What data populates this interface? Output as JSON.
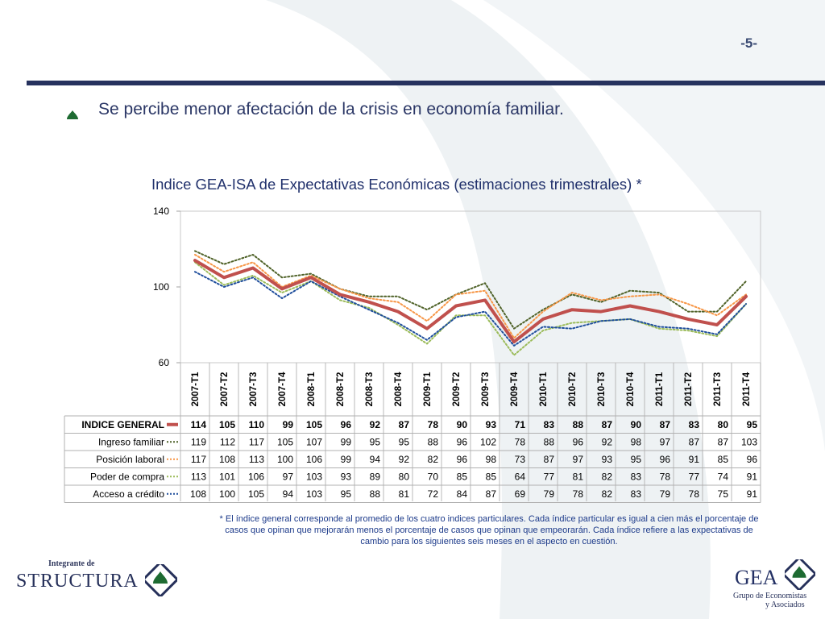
{
  "page_number": "-5-",
  "headline": "Se percibe menor afectación de la crisis en economía familiar.",
  "chart_title": "Indice GEA-ISA de Expectativas Económicas (estimaciones trimestrales) *",
  "footnote": "* El índice general corresponde al promedio de los cuatro indices particulares. Cada índice particular es igual a cien más el porcentaje de casos que opinan que mejorarán menos el porcentaje de casos que opinan que empeorarán. Cada índice refiere a las expectativas de cambio para los siguientes seis meses en el aspecto en cuestión.",
  "logos": {
    "structura_small": "Integrante de",
    "structura_big": "STRUCTURA",
    "gea_big": "GEA",
    "gea_line1": "Grupo de Economistas",
    "gea_line2": "y Asociados"
  },
  "colors": {
    "general": "#c0504d",
    "ingreso": "#4f6228",
    "posicion": "#f79646",
    "poder": "#9bbb59",
    "acceso": "#1f4e9c",
    "bullet": "#1e6b32",
    "rule": "#26325e"
  },
  "chart_data": {
    "type": "line",
    "title": "Indice GEA-ISA de Expectativas Económicas (estimaciones trimestrales) *",
    "categories": [
      "2007-T1",
      "2007-T2",
      "2007-T3",
      "2007-T4",
      "2008-T1",
      "2008-T2",
      "2008-T3",
      "2008-T4",
      "2009-T1",
      "2009-T2",
      "2009-T3",
      "2009-T4",
      "2010-T1",
      "2010-T2",
      "2010-T3",
      "2010-T4",
      "2011-T1",
      "2011-T2",
      "2011-T3",
      "2011-T4"
    ],
    "ylim": [
      60,
      140
    ],
    "yticks": [
      60,
      100,
      140
    ],
    "grid": false,
    "legend": "data-table",
    "series": [
      {
        "name": "INDICE GENERAL",
        "style": "solid",
        "values": [
          114,
          105,
          110,
          99,
          105,
          96,
          92,
          87,
          78,
          90,
          93,
          71,
          83,
          88,
          87,
          90,
          87,
          83,
          80,
          95
        ]
      },
      {
        "name": "Ingreso familiar",
        "style": "dotted",
        "values": [
          119,
          112,
          117,
          105,
          107,
          99,
          95,
          95,
          88,
          96,
          102,
          78,
          88,
          96,
          92,
          98,
          97,
          87,
          87,
          103
        ]
      },
      {
        "name": "Posición laboral",
        "style": "dotted",
        "values": [
          117,
          108,
          113,
          100,
          106,
          99,
          94,
          92,
          82,
          96,
          98,
          73,
          87,
          97,
          93,
          95,
          96,
          91,
          85,
          96
        ]
      },
      {
        "name": "Poder de compra",
        "style": "dotted",
        "values": [
          113,
          101,
          106,
          97,
          103,
          93,
          89,
          80,
          70,
          85,
          85,
          64,
          77,
          81,
          82,
          83,
          78,
          77,
          74,
          91
        ]
      },
      {
        "name": "Acceso a crédito",
        "style": "dotted",
        "values": [
          108,
          100,
          105,
          94,
          103,
          95,
          88,
          81,
          72,
          84,
          87,
          69,
          79,
          78,
          82,
          83,
          79,
          78,
          75,
          91
        ]
      }
    ]
  }
}
